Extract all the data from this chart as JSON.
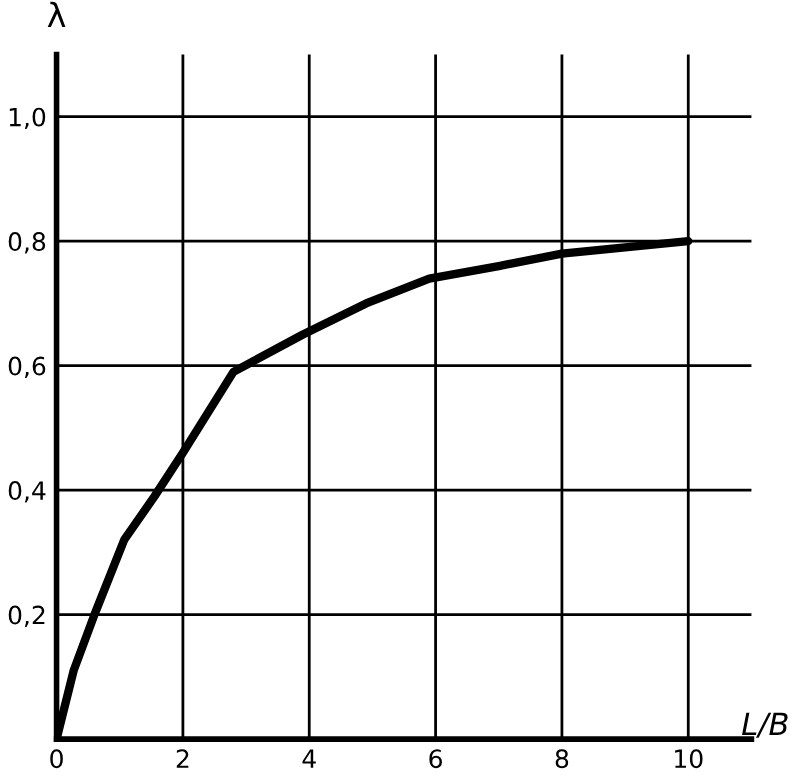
{
  "chart_data": {
    "type": "line",
    "xlabel": "L/B",
    "ylabel": "λ",
    "series": [
      {
        "color": "#000000",
        "x": [
          0,
          0.27,
          0.6,
          1.07,
          1.55,
          2,
          2.8,
          3.9,
          4.9,
          5.9,
          7,
          8,
          9,
          10
        ],
        "values": [
          0,
          0.11,
          0.2,
          0.32,
          0.39,
          0.46,
          0.59,
          0.65,
          0.7,
          0.74,
          0.76,
          0.78,
          0.79,
          0.8
        ]
      }
    ],
    "xlim": [
      0,
      11
    ],
    "ylim": [
      0,
      1.1
    ],
    "xticks": [
      0,
      2,
      4,
      6,
      8,
      10
    ],
    "yticks": [
      {
        "value": 0.2,
        "label": "0,2"
      },
      {
        "value": 0.4,
        "label": "0,4"
      },
      {
        "value": 0.6,
        "label": "0,6"
      },
      {
        "value": 0.8,
        "label": "0,8"
      },
      {
        "value": 1.0,
        "label": "1,0"
      }
    ],
    "grid": true,
    "marker": "none",
    "line_style": "solid"
  }
}
